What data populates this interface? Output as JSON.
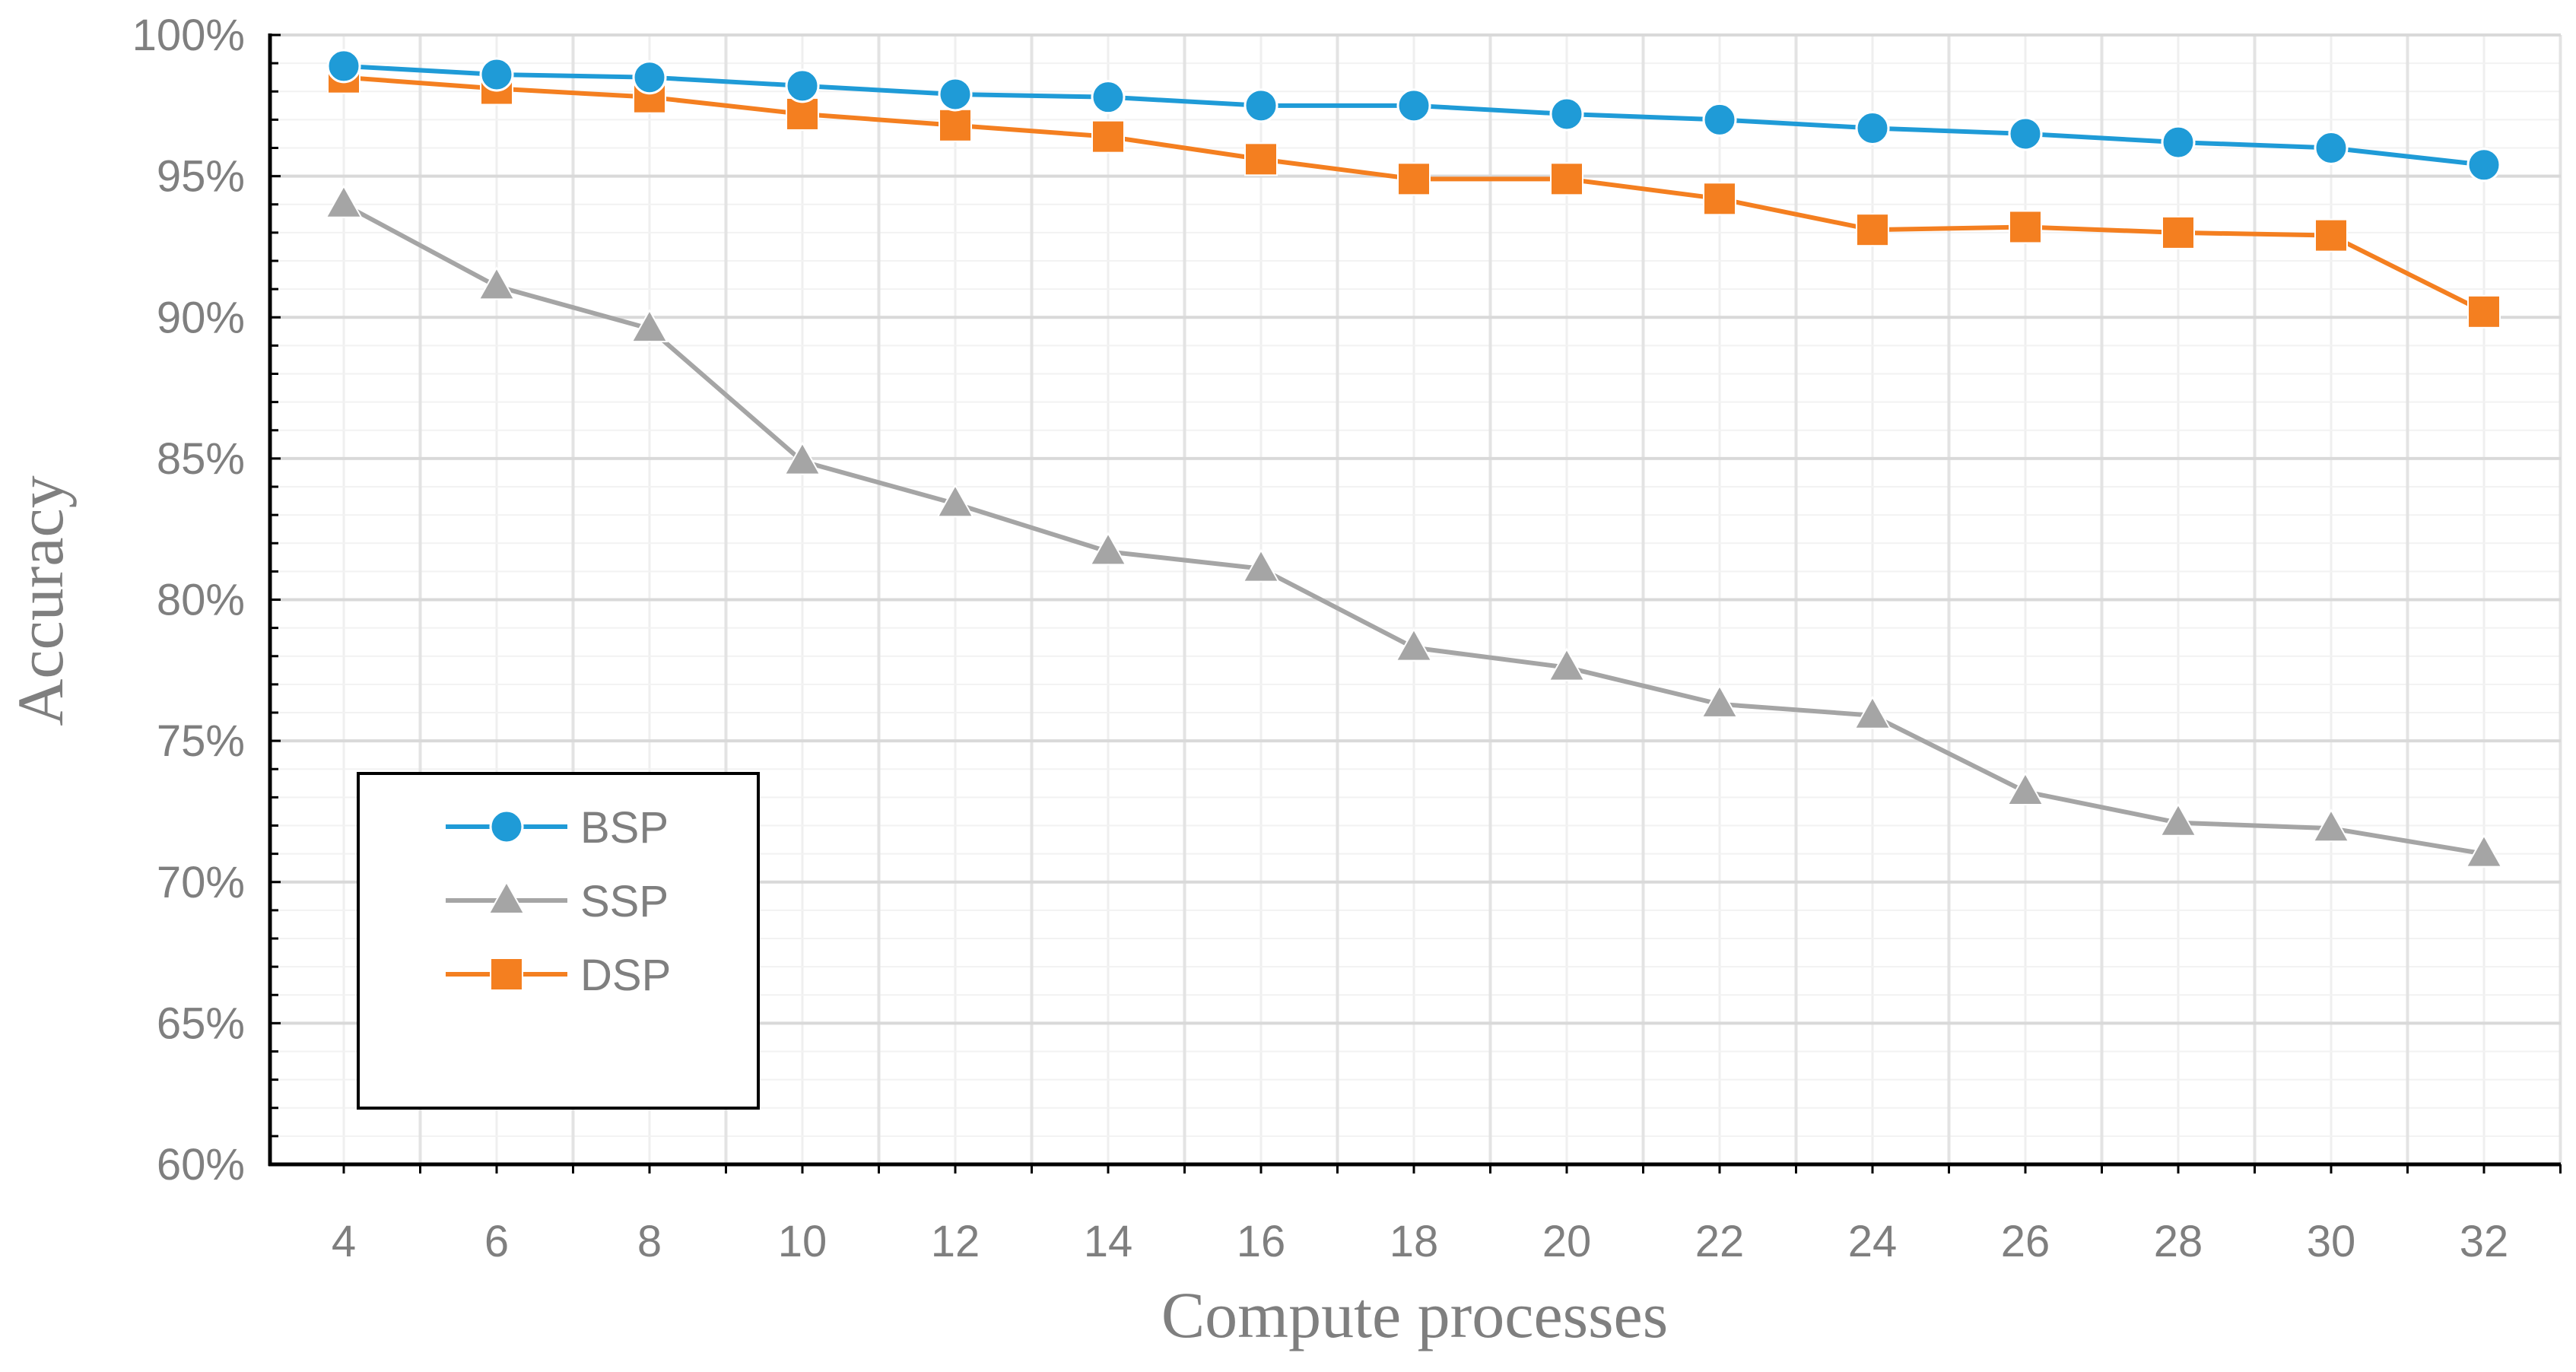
{
  "chart_data": {
    "type": "line",
    "title": "",
    "xlabel": "Compute processes",
    "ylabel": "Accuracy",
    "x": [
      4,
      6,
      8,
      10,
      12,
      14,
      16,
      18,
      20,
      22,
      24,
      26,
      28,
      30,
      32
    ],
    "x_tick_labels": [
      "4",
      "6",
      "8",
      "10",
      "12",
      "14",
      "16",
      "18",
      "20",
      "22",
      "24",
      "26",
      "28",
      "30",
      "32"
    ],
    "ylim": [
      60,
      100
    ],
    "y_ticks": [
      60,
      65,
      70,
      75,
      80,
      85,
      90,
      95,
      100
    ],
    "y_tick_labels": [
      "60%",
      "65%",
      "70%",
      "75%",
      "80%",
      "85%",
      "90%",
      "95%",
      "100%"
    ],
    "grid": true,
    "legend_position": "bottom-left",
    "series": [
      {
        "name": "BSP",
        "color": "#1f9bd7",
        "marker": "circle",
        "values": [
          98.9,
          98.6,
          98.5,
          98.2,
          97.9,
          97.8,
          97.5,
          97.5,
          97.2,
          97.0,
          96.7,
          96.5,
          96.2,
          96.0,
          95.4
        ]
      },
      {
        "name": "SSP",
        "color": "#a5a5a5",
        "marker": "triangle",
        "values": [
          94.0,
          91.1,
          89.6,
          84.9,
          83.4,
          81.7,
          81.1,
          78.3,
          77.6,
          76.3,
          75.9,
          73.2,
          72.1,
          71.9,
          71.0
        ]
      },
      {
        "name": "DSP",
        "color": "#f47f20",
        "marker": "square",
        "values": [
          98.5,
          98.1,
          97.8,
          97.2,
          96.8,
          96.4,
          95.6,
          94.9,
          94.9,
          94.2,
          93.1,
          93.2,
          93.0,
          92.9,
          90.2
        ]
      }
    ]
  }
}
